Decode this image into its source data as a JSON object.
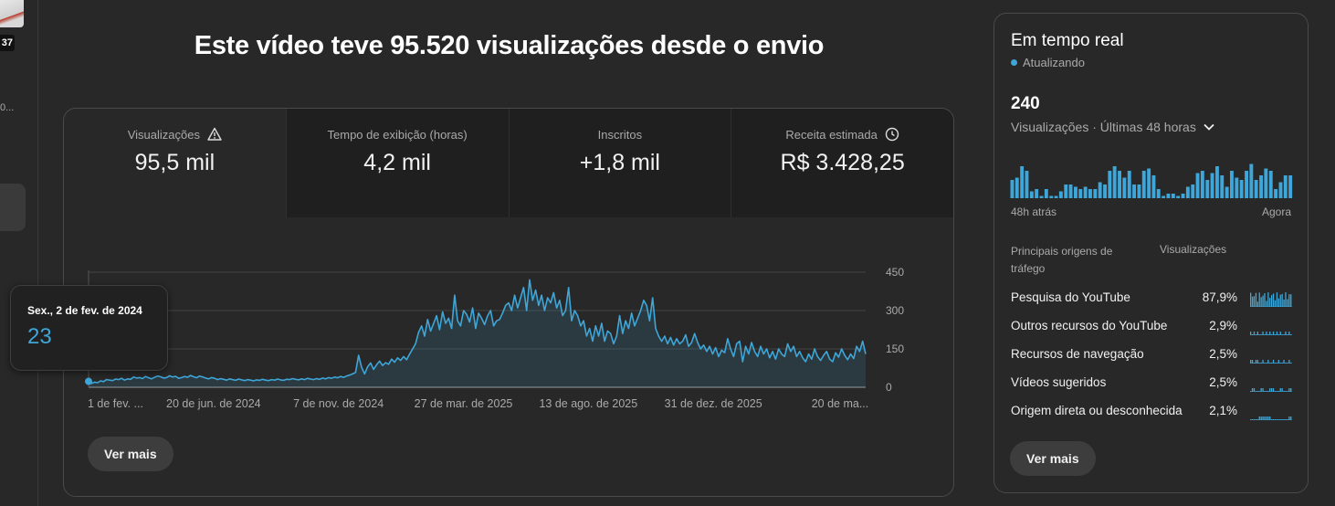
{
  "left_rail": {
    "thumb_badge": "37",
    "dots_text": "0..."
  },
  "headline": "Este vídeo teve 95.520 visualizações desde o envio",
  "metrics": [
    {
      "label": "Visualizações",
      "value": "95,5 mil",
      "icon": "warning-icon",
      "active": true
    },
    {
      "label": "Tempo de exibição (horas)",
      "value": "4,2 mil",
      "icon": null,
      "active": false
    },
    {
      "label": "Inscritos",
      "value": "+1,8 mil",
      "icon": null,
      "active": false
    },
    {
      "label": "Receita estimada",
      "value": "R$ 3.428,25",
      "icon": "clock-icon",
      "active": false
    }
  ],
  "tooltip": {
    "date": "Sex., 2 de fev. de 2024",
    "value": "23"
  },
  "main_button": "Ver mais",
  "chart_data": {
    "type": "area",
    "y_ticks": [
      "450",
      "300",
      "150",
      "0"
    ],
    "ylim": [
      0,
      450
    ],
    "x_tick_labels": [
      "1 de fev. ...",
      "20 de jun. de 2024",
      "7 de nov. de 2024",
      "27 de mar. de 2025",
      "13 de ago. de 2025",
      "31 de dez. de 2025",
      "20 de ma..."
    ],
    "grid": true,
    "color": "#3ea6d8",
    "series": [
      {
        "name": "",
        "values": [
          23,
          15,
          20,
          18,
          25,
          22,
          30,
          28,
          26,
          32,
          30,
          35,
          28,
          33,
          31,
          40,
          36,
          38,
          34,
          42,
          37,
          33,
          39,
          44,
          41,
          36,
          38,
          45,
          40,
          43,
          35,
          38,
          42,
          39,
          46,
          41,
          37,
          44,
          40,
          36,
          33,
          38,
          35,
          30,
          34,
          31,
          28,
          33,
          30,
          27,
          32,
          29,
          26,
          30,
          28,
          25,
          29,
          27,
          31,
          28,
          26,
          30,
          28,
          32,
          29,
          27,
          31,
          30,
          34,
          31,
          29,
          33,
          30,
          35,
          32,
          30,
          34,
          31,
          36,
          33,
          38,
          35,
          40,
          37,
          42,
          39,
          44,
          48,
          52,
          58,
          125,
          78,
          52,
          80,
          95,
          70,
          88,
          102,
          85,
          96,
          90,
          110,
          98,
          115,
          105,
          120,
          108,
          130,
          150,
          170,
          215,
          240,
          200,
          265,
          220,
          250,
          280,
          225,
          295,
          250,
          270,
          230,
          360,
          260,
          240,
          300,
          285,
          255,
          310,
          230,
          290,
          270,
          245,
          280,
          300,
          240,
          260,
          265,
          290,
          320,
          330,
          300,
          360,
          310,
          350,
          390,
          300,
          420,
          340,
          380,
          320,
          360,
          300,
          350,
          330,
          370,
          310,
          340,
          280,
          300,
          390,
          260,
          300,
          280,
          240,
          260,
          200,
          230,
          180,
          240,
          200,
          250,
          180,
          220,
          210,
          170,
          200,
          280,
          210,
          260,
          230,
          290,
          240,
          270,
          300,
          340,
          320,
          260,
          350,
          230,
          200,
          180,
          200,
          170,
          195,
          165,
          190,
          170,
          180,
          205,
          160,
          175,
          210,
          175,
          150,
          165,
          140,
          160,
          130,
          155,
          120,
          145,
          135,
          190,
          150,
          120,
          170,
          180,
          100,
          160,
          130,
          175,
          140,
          120,
          160,
          130,
          150,
          115,
          140,
          110,
          150,
          130,
          120,
          170,
          140,
          160,
          120,
          140,
          115,
          100,
          130,
          110,
          150,
          120,
          105,
          125,
          140,
          110,
          100,
          135,
          118,
          150,
          125,
          108,
          130,
          112,
          160,
          140,
          180,
          130
        ]
      }
    ]
  },
  "realtime": {
    "title": "Em tempo real",
    "status": "Atualizando",
    "count": "240",
    "period": "Visualizações · Últimas 48 horas",
    "bars": [
      8,
      9,
      14,
      12,
      3,
      4,
      1,
      4,
      1,
      1,
      3,
      6,
      6,
      5,
      4,
      5,
      4,
      4,
      7,
      6,
      12,
      14,
      12,
      9,
      12,
      6,
      6,
      12,
      13,
      10,
      4,
      1,
      2,
      2,
      1,
      2,
      5,
      6,
      11,
      12,
      8,
      11,
      14,
      10,
      5,
      12,
      9,
      8,
      12,
      15,
      8,
      10,
      13,
      12,
      4,
      7,
      10,
      10
    ],
    "bars_max": 16,
    "axis_left": "48h atrás",
    "axis_right": "Agora",
    "th_source": "Principais origens de tráfego",
    "th_views": "Visualizações",
    "sources": [
      {
        "label": "Pesquisa do YouTube",
        "pct": "87,9%",
        "fraction": 0.879
      },
      {
        "label": "Outros recursos do YouTube",
        "pct": "2,9%",
        "fraction": 0.029
      },
      {
        "label": "Recursos de navegação",
        "pct": "2,5%",
        "fraction": 0.025
      },
      {
        "label": "Vídeos sugeridos",
        "pct": "2,5%",
        "fraction": 0.025
      },
      {
        "label": "Origem direta ou desconhecida",
        "pct": "2,1%",
        "fraction": 0.021
      }
    ],
    "button": "Ver mais"
  }
}
